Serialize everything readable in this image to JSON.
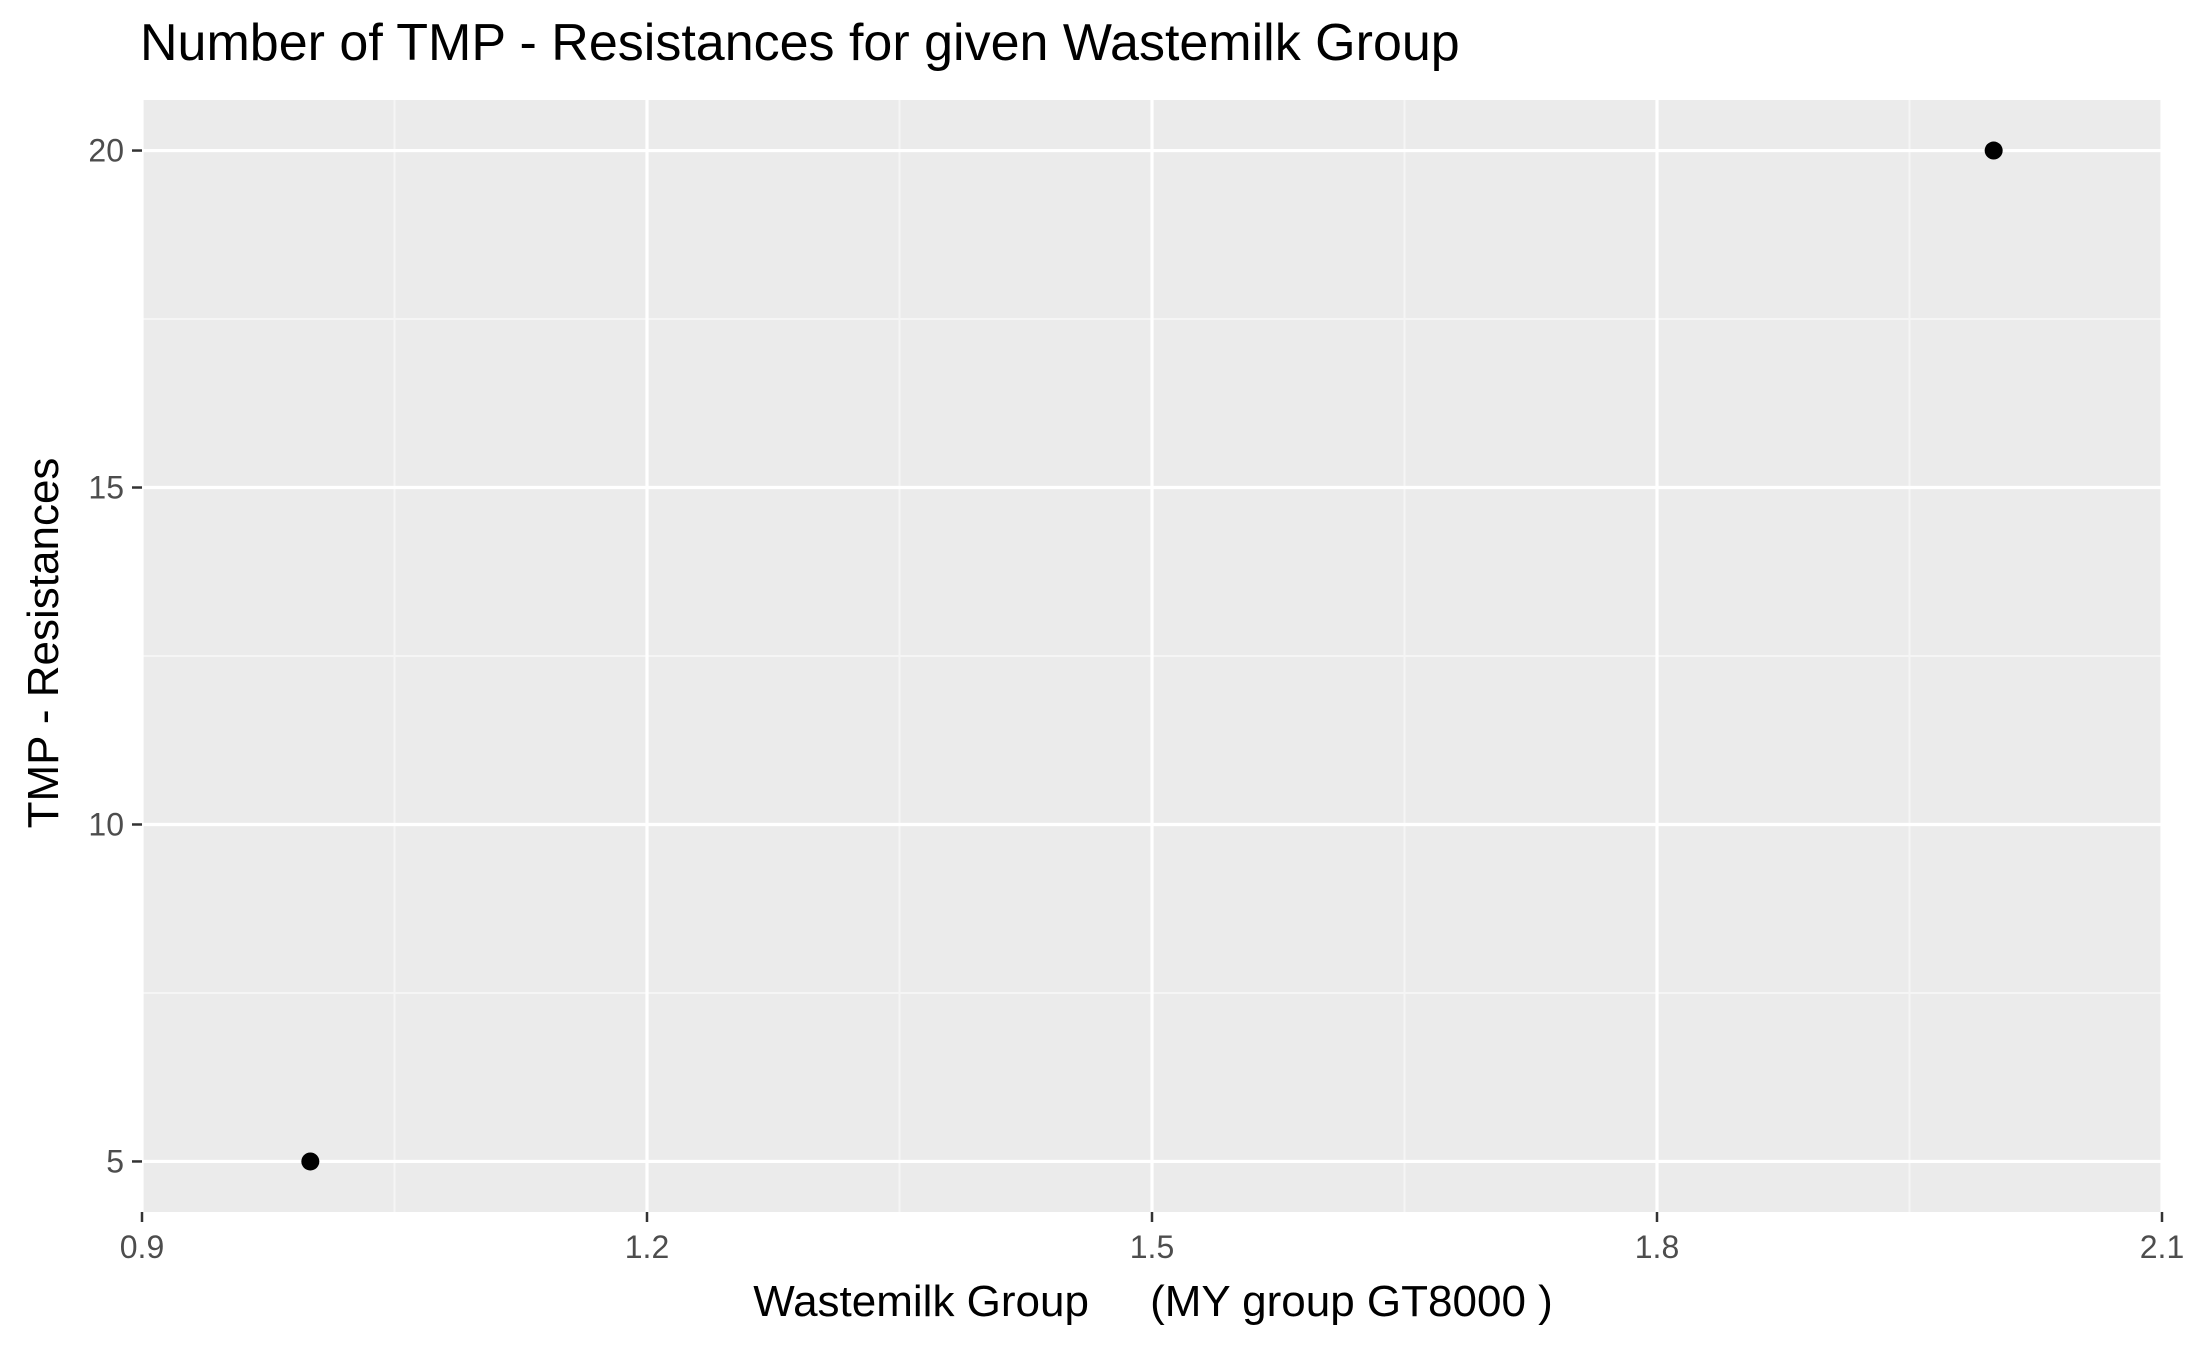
{
  "chart_data": {
    "type": "scatter",
    "title": "Number of TMP - Resistances for given Wastemilk Group",
    "xlabel": "Wastemilk Group     (MY group GT8000 )",
    "ylabel": "TMP - Resistances",
    "xlim": [
      0.9,
      2.1
    ],
    "ylim": [
      4.25,
      20.75
    ],
    "x_ticks": [
      "0.9",
      "1.2",
      "1.5",
      "1.8",
      "2.1"
    ],
    "y_ticks": [
      "5",
      "10",
      "15",
      "20"
    ],
    "grid": true,
    "legend": "none",
    "points": [
      {
        "x": 1.0,
        "y": 5
      },
      {
        "x": 2.0,
        "y": 20
      }
    ]
  },
  "colors": {
    "panel_background": "#ebebeb",
    "grid_major": "#ffffff",
    "grid_minor": "#f5f5f5",
    "point": "#000000",
    "tick_text": "#4d4d4d",
    "tick_mark": "#333333"
  }
}
